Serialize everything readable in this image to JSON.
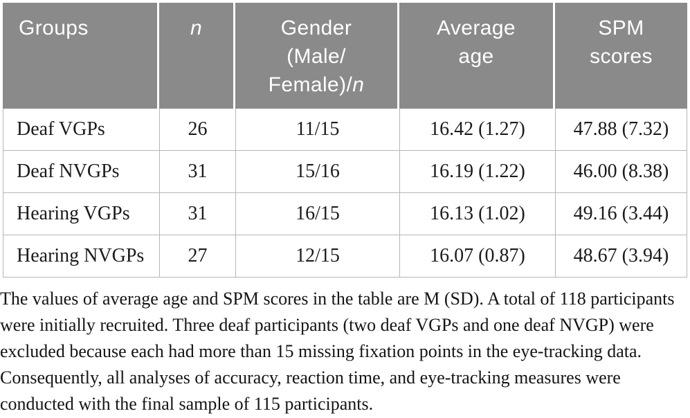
{
  "table": {
    "header": {
      "groups": "Groups",
      "n": "n",
      "gender_lines": [
        "Gender",
        "(Male/",
        "Female)/"
      ],
      "gender_italic_suffix": "n",
      "average_age_lines": [
        "Average",
        "age"
      ],
      "spm_lines": [
        "SPM",
        "scores"
      ]
    },
    "rows": [
      {
        "group": "Deaf VGPs",
        "n": "26",
        "gender": "11/15",
        "average_age": "16.42 (1.27)",
        "spm_scores": "47.88 (7.32)"
      },
      {
        "group": "Deaf NVGPs",
        "n": "31",
        "gender": "15/16",
        "average_age": "16.19 (1.22)",
        "spm_scores": "46.00 (8.38)"
      },
      {
        "group": "Hearing VGPs",
        "n": "31",
        "gender": "16/15",
        "average_age": "16.13 (1.02)",
        "spm_scores": "49.16 (3.44)"
      },
      {
        "group": "Hearing NVGPs",
        "n": "27",
        "gender": "12/15",
        "average_age": "16.07 (0.87)",
        "spm_scores": "48.67 (3.94)"
      }
    ]
  },
  "footnote": {
    "lines": [
      "The values of average age and SPM scores in the table are M (SD). A total of 118 participants",
      "were initially recruited. Three deaf participants (two deaf VGPs and one deaf NVGP) were",
      "excluded because each had more than 15 missing fixation points in the eye-tracking data.",
      "Consequently, all analyses of accuracy, reaction time, and eye-tracking measures were",
      "conducted with the final sample of 115 participants."
    ]
  },
  "colors": {
    "header_bg": "#8a8a8a",
    "header_text": "#ffffff",
    "divider": "#b5b5b5",
    "body_text": "#1b1b1b"
  }
}
